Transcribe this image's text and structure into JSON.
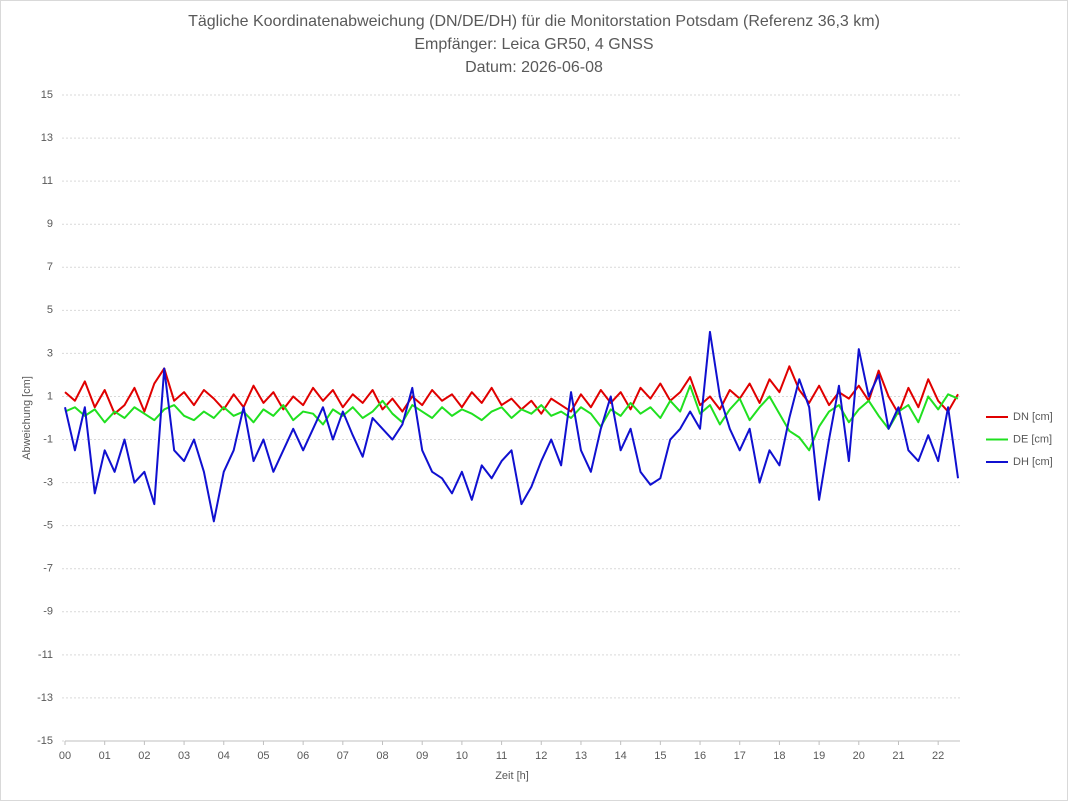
{
  "chart_data": {
    "type": "line",
    "title": "Tägliche Koordinatenabweichung (DN/DE/DH) für die Monitorstation Potsdam (Referenz 36,3 km)",
    "subtitle": [
      "Empfänger: Leica GR50, 4 GNSS",
      "Datum: 2026-06-08"
    ],
    "x_label": "Zeit [h]",
    "y_label": "Abweichung [cm]",
    "xlim": [
      0,
      22.55
    ],
    "ylim": [
      -15,
      15
    ],
    "xticks": [
      {
        "value": 0,
        "label": "00"
      },
      {
        "value": 1,
        "label": "01"
      },
      {
        "value": 2,
        "label": "02"
      },
      {
        "value": 3,
        "label": "03"
      },
      {
        "value": 4,
        "label": "04"
      },
      {
        "value": 5,
        "label": "05"
      },
      {
        "value": 6,
        "label": "06"
      },
      {
        "value": 7,
        "label": "07"
      },
      {
        "value": 8,
        "label": "08"
      },
      {
        "value": 9,
        "label": "09"
      },
      10,
      11,
      12,
      13,
      14,
      15,
      16,
      17,
      18,
      19,
      20,
      21,
      22
    ],
    "yticks": [
      -15,
      -13,
      -11,
      -9,
      -7,
      -5,
      -3,
      -1,
      1,
      3,
      5,
      7,
      9,
      11,
      13,
      15
    ],
    "grid": true,
    "legend": "right",
    "x": [
      0,
      0.25,
      0.5,
      0.75,
      1,
      1.25,
      1.5,
      1.75,
      2,
      2.25,
      2.5,
      2.75,
      3,
      3.25,
      3.5,
      3.75,
      4,
      4.25,
      4.5,
      4.75,
      5,
      5.25,
      5.5,
      5.75,
      6,
      6.25,
      6.5,
      6.75,
      7,
      7.25,
      7.5,
      7.75,
      8,
      8.25,
      8.5,
      8.75,
      9,
      9.25,
      9.5,
      9.75,
      10,
      10.25,
      10.5,
      10.75,
      11,
      11.25,
      11.5,
      11.75,
      12,
      12.25,
      12.5,
      12.75,
      13,
      13.25,
      13.5,
      13.75,
      14,
      14.25,
      14.5,
      14.75,
      15,
      15.25,
      15.5,
      15.75,
      16,
      16.25,
      16.5,
      16.75,
      17,
      17.25,
      17.5,
      17.75,
      18,
      18.25,
      18.5,
      18.75,
      19,
      19.25,
      19.5,
      19.75,
      20,
      20.25,
      20.5,
      20.75,
      21,
      21.25,
      21.5,
      21.75,
      22,
      22.25,
      22.5
    ],
    "series": [
      {
        "name": "DN [cm]",
        "color": "#e00000",
        "values": [
          1.2,
          0.8,
          1.7,
          0.5,
          1.3,
          0.2,
          0.6,
          1.4,
          0.3,
          1.6,
          2.3,
          0.8,
          1.2,
          0.6,
          1.3,
          0.9,
          0.4,
          1.1,
          0.5,
          1.5,
          0.7,
          1.2,
          0.4,
          1.0,
          0.6,
          1.4,
          0.8,
          1.3,
          0.5,
          1.1,
          0.7,
          1.3,
          0.4,
          0.9,
          0.3,
          1.0,
          0.6,
          1.3,
          0.8,
          1.1,
          0.5,
          1.2,
          0.7,
          1.4,
          0.6,
          0.9,
          0.4,
          0.8,
          0.2,
          0.9,
          0.6,
          0.3,
          1.1,
          0.5,
          1.3,
          0.7,
          1.2,
          0.4,
          1.4,
          0.9,
          1.6,
          0.8,
          1.2,
          1.9,
          0.6,
          1.0,
          0.4,
          1.3,
          0.9,
          1.6,
          0.7,
          1.8,
          1.2,
          2.4,
          1.3,
          0.7,
          1.5,
          0.6,
          1.2,
          0.9,
          1.5,
          0.8,
          2.2,
          1.0,
          0.2,
          1.4,
          0.5,
          1.8,
          0.8,
          0.3,
          1.1
        ]
      },
      {
        "name": "DE [cm]",
        "color": "#20e020",
        "values": [
          0.3,
          0.5,
          0.1,
          0.4,
          -0.2,
          0.3,
          0.0,
          0.5,
          0.2,
          -0.1,
          0.4,
          0.6,
          0.1,
          -0.1,
          0.3,
          0.0,
          0.5,
          0.1,
          0.3,
          -0.2,
          0.4,
          0.1,
          0.6,
          -0.1,
          0.3,
          0.2,
          -0.3,
          0.4,
          0.1,
          0.5,
          0.0,
          0.3,
          0.8,
          0.2,
          -0.2,
          0.6,
          0.3,
          0.0,
          0.5,
          0.1,
          0.4,
          0.2,
          -0.1,
          0.3,
          0.5,
          0.0,
          0.4,
          0.2,
          0.6,
          0.1,
          0.3,
          0.0,
          0.5,
          0.2,
          -0.4,
          0.4,
          0.1,
          0.7,
          0.2,
          0.5,
          0.0,
          0.8,
          0.3,
          1.5,
          0.2,
          0.6,
          -0.3,
          0.4,
          0.9,
          -0.1,
          0.5,
          1.0,
          0.2,
          -0.6,
          -0.9,
          -1.5,
          -0.4,
          0.3,
          0.6,
          -0.2,
          0.4,
          0.8,
          0.1,
          -0.5,
          0.3,
          0.6,
          -0.2,
          1.0,
          0.4,
          1.1,
          0.9
        ]
      },
      {
        "name": "DH [cm]",
        "color": "#1010d0",
        "values": [
          0.5,
          -1.5,
          0.5,
          -3.5,
          -1.5,
          -2.5,
          -1,
          -3,
          -2.5,
          -4,
          2.3,
          -1.5,
          -2,
          -1,
          -2.5,
          -4.8,
          -2.5,
          -1.5,
          0.5,
          -2,
          -1,
          -2.5,
          -1.5,
          -0.5,
          -1.5,
          -0.5,
          0.5,
          -1,
          0.3,
          -0.8,
          -1.8,
          0,
          -0.5,
          -1,
          -0.3,
          1.4,
          -1.5,
          -2.5,
          -2.8,
          -3.5,
          -2.5,
          -3.8,
          -2.2,
          -2.8,
          -2,
          -1.5,
          -4,
          -3.2,
          -2,
          -1,
          -2.2,
          1.2,
          -1.5,
          -2.5,
          -0.5,
          1,
          -1.5,
          -0.5,
          -2.5,
          -3.1,
          -2.8,
          -1,
          -0.5,
          0.3,
          -0.5,
          4,
          1,
          -0.5,
          -1.5,
          -0.5,
          -3,
          -1.5,
          -2.2,
          0,
          1.8,
          0.5,
          -3.8,
          -1,
          1.5,
          -2,
          3.2,
          1,
          2,
          -0.5,
          0.5,
          -1.5,
          -2,
          -0.8,
          -2,
          0.5,
          -2.8
        ]
      }
    ]
  }
}
